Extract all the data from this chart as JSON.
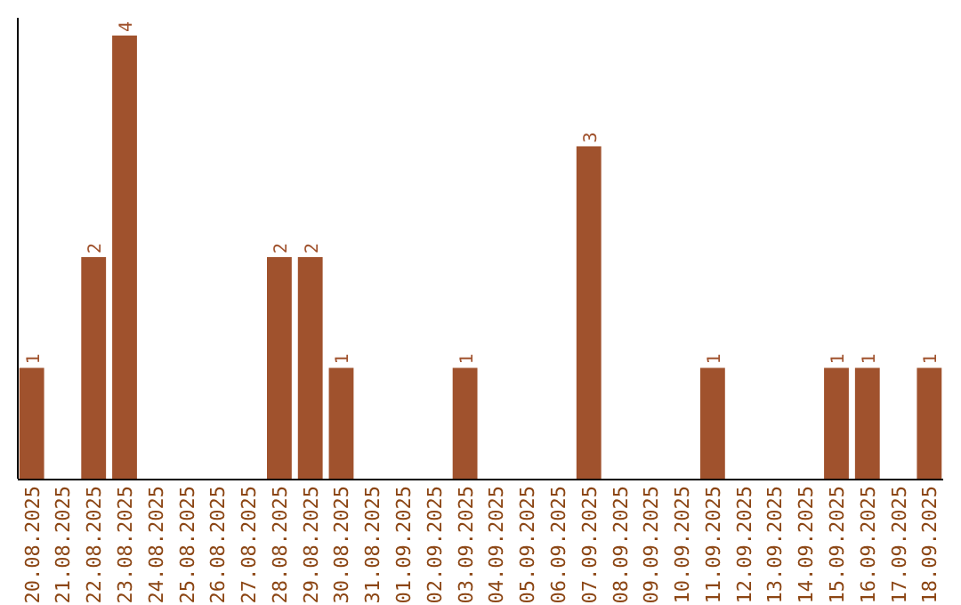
{
  "chart_data": {
    "type": "bar",
    "categories": [
      "20.08.2025",
      "21.08.2025",
      "22.08.2025",
      "23.08.2025",
      "24.08.2025",
      "25.08.2025",
      "26.08.2025",
      "27.08.2025",
      "28.08.2025",
      "29.08.2025",
      "30.08.2025",
      "31.08.2025",
      "01.09.2025",
      "02.09.2025",
      "03.09.2025",
      "04.09.2025",
      "05.09.2025",
      "06.09.2025",
      "07.09.2025",
      "08.09.2025",
      "09.09.2025",
      "10.09.2025",
      "11.09.2025",
      "12.09.2025",
      "13.09.2025",
      "14.09.2025",
      "15.09.2025",
      "16.09.2025",
      "17.09.2025",
      "18.09.2025"
    ],
    "values": [
      1,
      0,
      2,
      4,
      0,
      0,
      0,
      0,
      2,
      2,
      1,
      0,
      0,
      0,
      1,
      0,
      0,
      0,
      3,
      0,
      0,
      0,
      1,
      0,
      0,
      0,
      1,
      1,
      0,
      1
    ],
    "value_labels": [
      "1",
      null,
      "2",
      "4",
      null,
      null,
      null,
      null,
      "2",
      "2",
      "1",
      null,
      null,
      null,
      "1",
      null,
      null,
      null,
      "3",
      null,
      null,
      null,
      "1",
      null,
      null,
      null,
      "1",
      "1",
      null,
      "1"
    ],
    "color": "#a0522d",
    "tick_labels": "x"
  }
}
